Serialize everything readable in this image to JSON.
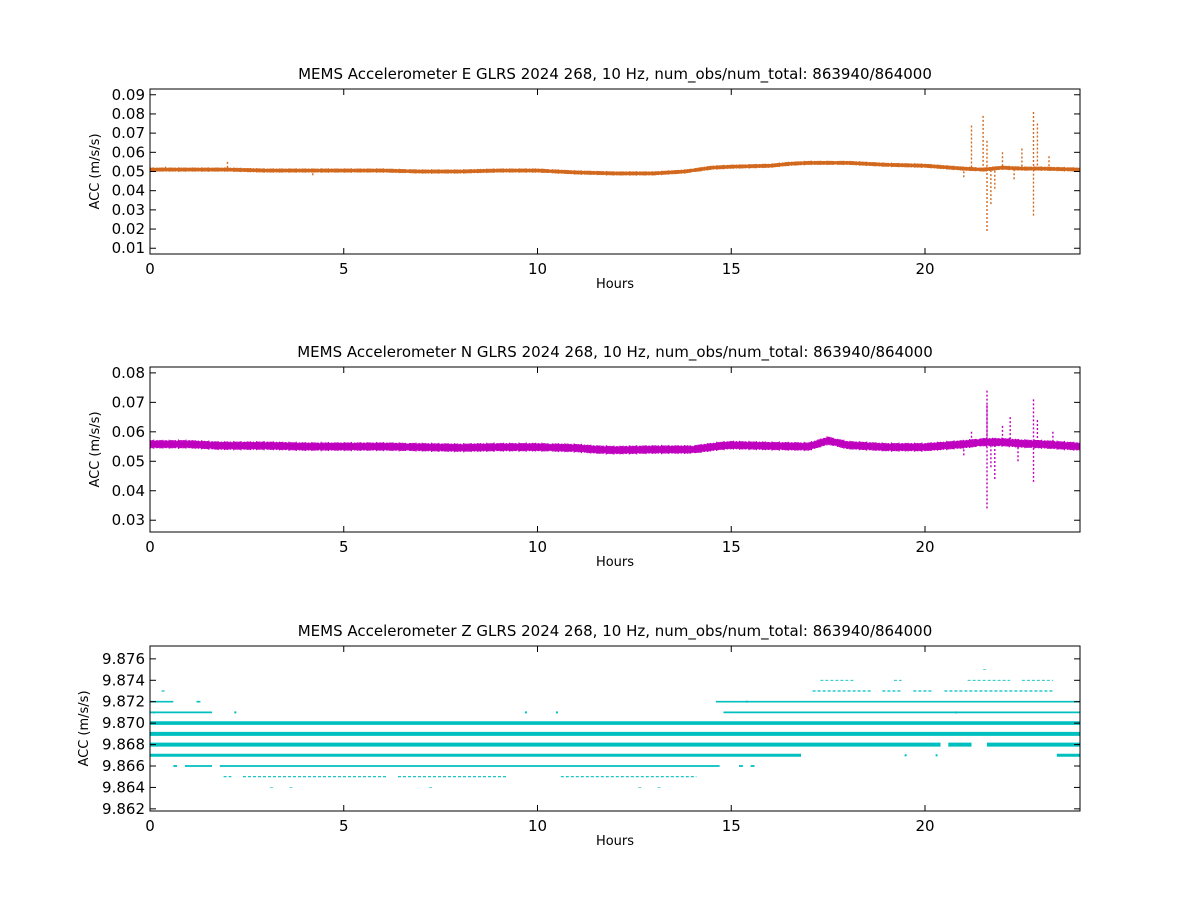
{
  "chart_data": [
    {
      "type": "scatter",
      "title": "MEMS Accelerometer E GLRS 2024 268, 10 Hz, num_obs/num_total: 863940/864000",
      "xlabel": "Hours",
      "ylabel": "ACC (m/s/s)",
      "xlim": [
        0,
        24
      ],
      "ylim": [
        0.007,
        0.093
      ],
      "xticks": [
        0,
        5,
        10,
        15,
        20
      ],
      "yticks": [
        0.01,
        0.02,
        0.03,
        0.04,
        0.05,
        0.06,
        0.07,
        0.08,
        0.09
      ],
      "ytick_labels": [
        "0.01",
        "0.02",
        "0.03",
        "0.04",
        "0.05",
        "0.06",
        "0.07",
        "0.08",
        "0.09"
      ],
      "color": "#d2691e",
      "series": [
        {
          "x": [
            0,
            1,
            2,
            3,
            4,
            5,
            6,
            7,
            8,
            9,
            10,
            11,
            12,
            13,
            13.8,
            14.5,
            15,
            16,
            16.5,
            17,
            17.5,
            18,
            18.5,
            19,
            20,
            21,
            21.5,
            22,
            22.5,
            23,
            24
          ],
          "y": [
            0.051,
            0.051,
            0.051,
            0.0505,
            0.0505,
            0.0505,
            0.0505,
            0.05,
            0.05,
            0.0505,
            0.0505,
            0.0495,
            0.049,
            0.049,
            0.05,
            0.052,
            0.0525,
            0.053,
            0.054,
            0.0545,
            0.0545,
            0.0545,
            0.054,
            0.0535,
            0.053,
            0.0515,
            0.051,
            0.052,
            0.0515,
            0.0515,
            0.051
          ],
          "spread": 0.0012,
          "outliers_x": [
            0.4,
            2.0,
            4.2,
            21.0,
            21.2,
            21.5,
            21.6,
            21.6,
            21.7,
            21.8,
            22.0,
            22.3,
            22.5,
            22.8,
            22.8,
            22.9,
            23.2
          ],
          "outliers_y": [
            0.0525,
            0.055,
            0.048,
            0.047,
            0.074,
            0.079,
            0.066,
            0.019,
            0.033,
            0.041,
            0.06,
            0.046,
            0.062,
            0.081,
            0.027,
            0.075,
            0.058
          ]
        }
      ]
    },
    {
      "type": "scatter",
      "title": "MEMS Accelerometer N GLRS 2024 268, 10 Hz, num_obs/num_total: 863940/864000",
      "xlabel": "Hours",
      "ylabel": "ACC (m/s/s)",
      "xlim": [
        0,
        24
      ],
      "ylim": [
        0.026,
        0.082
      ],
      "xticks": [
        0,
        5,
        10,
        15,
        20
      ],
      "yticks": [
        0.03,
        0.04,
        0.05,
        0.06,
        0.07,
        0.08
      ],
      "ytick_labels": [
        "0.03",
        "0.04",
        "0.05",
        "0.06",
        "0.07",
        "0.08"
      ],
      "color": "#bf00bf",
      "series": [
        {
          "x": [
            0,
            1,
            1.8,
            3,
            4,
            5,
            6,
            7,
            8,
            9,
            10,
            11,
            11.5,
            12,
            13,
            14,
            14.7,
            15,
            16,
            17,
            17.5,
            18,
            19,
            20,
            21,
            21.5,
            22,
            22.5,
            23,
            24
          ],
          "y": [
            0.0558,
            0.0558,
            0.0553,
            0.0553,
            0.055,
            0.055,
            0.055,
            0.0548,
            0.0546,
            0.0548,
            0.0548,
            0.0545,
            0.054,
            0.0538,
            0.054,
            0.054,
            0.0552,
            0.0555,
            0.0552,
            0.055,
            0.057,
            0.0555,
            0.0548,
            0.0548,
            0.0558,
            0.0565,
            0.0565,
            0.056,
            0.0558,
            0.055
          ],
          "spread": 0.0016,
          "outliers_x": [
            21.0,
            21.2,
            21.6,
            21.6,
            21.6,
            21.7,
            21.8,
            22.0,
            22.2,
            22.4,
            22.8,
            22.8,
            22.9,
            23.3
          ],
          "outliers_y": [
            0.052,
            0.06,
            0.074,
            0.069,
            0.034,
            0.048,
            0.044,
            0.062,
            0.065,
            0.05,
            0.071,
            0.043,
            0.064,
            0.06
          ]
        }
      ]
    },
    {
      "type": "scatter",
      "title": "MEMS Accelerometer Z GLRS 2024 268, 10 Hz, num_obs/num_total: 863940/864000",
      "xlabel": "Hours",
      "ylabel": "ACC (m/s/s)",
      "xlim": [
        0,
        24
      ],
      "ylim": [
        9.8618,
        9.8772
      ],
      "xticks": [
        0,
        5,
        10,
        15,
        20
      ],
      "yticks": [
        9.862,
        9.864,
        9.866,
        9.868,
        9.87,
        9.872,
        9.874,
        9.876
      ],
      "ytick_labels": [
        "9.862",
        "9.864",
        "9.866",
        "9.868",
        "9.870",
        "9.872",
        "9.874",
        "9.876"
      ],
      "color": "#00bfbf",
      "levels": [
        {
          "y": 9.864,
          "width": 0.6,
          "segments": [
            [
              3.1,
              3.2
            ],
            [
              3.6,
              3.7
            ],
            [
              7.2,
              7.3
            ],
            [
              12.6,
              12.7
            ],
            [
              13.1,
              13.2
            ]
          ]
        },
        {
          "y": 9.865,
          "width": 1.2,
          "segments": [
            [
              1.9,
              2.1
            ],
            [
              2.4,
              6.1
            ],
            [
              6.4,
              9.2
            ],
            [
              10.6,
              14.1
            ]
          ]
        },
        {
          "y": 9.866,
          "width": 1.8,
          "segments": [
            [
              0.6,
              0.7
            ],
            [
              0.9,
              1.6
            ],
            [
              1.8,
              14.7
            ],
            [
              15.2,
              15.3
            ],
            [
              15.5,
              15.6
            ]
          ]
        },
        {
          "y": 9.867,
          "width": 3.0,
          "segments": [
            [
              0,
              16.8
            ],
            [
              23.4,
              24
            ]
          ]
        },
        {
          "y": 9.868,
          "width": 4.0,
          "segments": [
            [
              0,
              20.4
            ],
            [
              20.6,
              21.2
            ],
            [
              21.6,
              24
            ]
          ]
        },
        {
          "y": 9.869,
          "width": 4.0,
          "segments": [
            [
              0,
              24
            ]
          ]
        },
        {
          "y": 9.87,
          "width": 3.6,
          "segments": [
            [
              0,
              24
            ]
          ]
        },
        {
          "y": 9.871,
          "width": 1.8,
          "segments": [
            [
              0,
              1.6
            ],
            [
              14.8,
              24
            ]
          ]
        },
        {
          "y": 9.872,
          "width": 1.6,
          "segments": [
            [
              0,
              0.6
            ],
            [
              1.2,
              1.3
            ],
            [
              14.6,
              24
            ]
          ]
        },
        {
          "y": 9.873,
          "width": 1.2,
          "segments": [
            [
              0.3,
              0.4
            ],
            [
              17.1,
              18.6
            ],
            [
              18.9,
              19.4
            ],
            [
              19.7,
              20.2
            ],
            [
              20.5,
              23.3
            ]
          ]
        },
        {
          "y": 9.874,
          "width": 0.8,
          "segments": [
            [
              17.3,
              18.2
            ],
            [
              19.2,
              19.4
            ],
            [
              21.1,
              22.2
            ],
            [
              22.5,
              23.3
            ]
          ]
        },
        {
          "y": 9.875,
          "width": 0.6,
          "segments": [
            [
              21.5,
              21.6
            ]
          ]
        }
      ],
      "sparse_x": [
        0.1,
        2.0,
        2.2,
        9.5,
        9.7,
        10.5,
        10.7,
        15.4,
        18.5,
        19.5,
        20.3,
        20.8,
        21.0
      ],
      "sparse_y": [
        9.871,
        9.87,
        9.871,
        9.87,
        9.871,
        9.871,
        9.87,
        9.872,
        9.868,
        9.867,
        9.867,
        9.871,
        9.868
      ]
    }
  ]
}
